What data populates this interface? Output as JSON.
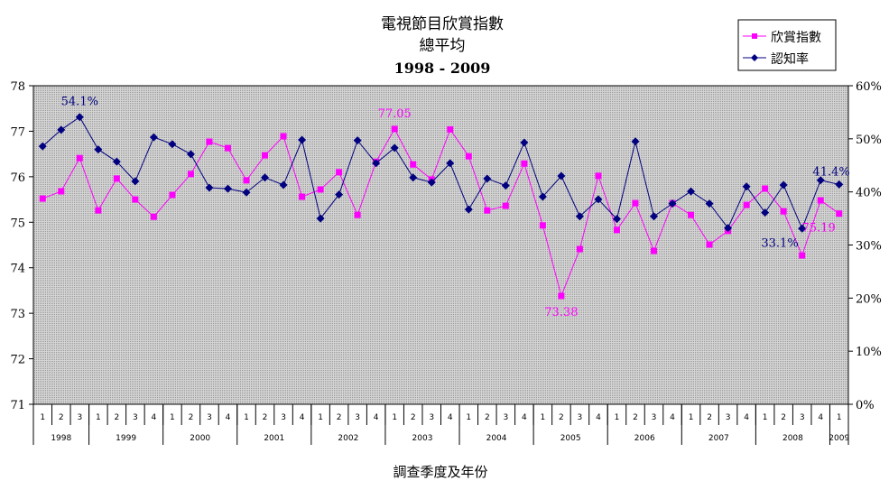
{
  "chart_data": {
    "type": "line",
    "title": "電視節目欣賞指數",
    "subtitle": "總平均",
    "period": "1998 - 2009",
    "xlabel": "調查季度及年份",
    "ylabel_left": "",
    "ylabel_right": "",
    "ylim_left": [
      71,
      78
    ],
    "ylim_right": [
      0,
      60
    ],
    "yticks_left": [
      "71",
      "72",
      "73",
      "74",
      "75",
      "76",
      "77",
      "78"
    ],
    "yticks_right": [
      "0%",
      "10%",
      "20%",
      "30%",
      "40%",
      "50%",
      "60%"
    ],
    "legend_placement": "top-right",
    "grid": false,
    "quarters": [
      "1",
      "2",
      "3",
      "1",
      "2",
      "3",
      "4",
      "1",
      "2",
      "3",
      "4",
      "1",
      "2",
      "3",
      "4",
      "1",
      "2",
      "3",
      "4",
      "1",
      "2",
      "3",
      "4",
      "1",
      "2",
      "3",
      "4",
      "1",
      "2",
      "3",
      "4",
      "1",
      "2",
      "3",
      "4",
      "1",
      "2",
      "3",
      "4",
      "1",
      "2",
      "3",
      "4",
      "1"
    ],
    "years": [
      {
        "label": "1998",
        "count": 3
      },
      {
        "label": "1999",
        "count": 4
      },
      {
        "label": "2000",
        "count": 4
      },
      {
        "label": "2001",
        "count": 4
      },
      {
        "label": "2002",
        "count": 4
      },
      {
        "label": "2003",
        "count": 4
      },
      {
        "label": "2004",
        "count": 4
      },
      {
        "label": "2005",
        "count": 4
      },
      {
        "label": "2006",
        "count": 4
      },
      {
        "label": "2007",
        "count": 4
      },
      {
        "label": "2008",
        "count": 4
      },
      {
        "label": "2009",
        "count": 1
      }
    ],
    "series": [
      {
        "name": "欣賞指數",
        "axis": "left",
        "color": "#FF00FF",
        "marker": "square",
        "values": [
          75.52,
          75.68,
          76.41,
          75.26,
          75.96,
          75.5,
          75.12,
          75.6,
          76.06,
          76.77,
          76.63,
          75.92,
          76.47,
          76.89,
          75.56,
          75.72,
          76.1,
          75.16,
          76.33,
          77.05,
          76.27,
          75.94,
          77.04,
          76.45,
          75.26,
          75.36,
          76.29,
          74.93,
          73.38,
          74.41,
          76.02,
          74.83,
          75.42,
          74.37,
          75.42,
          75.16,
          74.51,
          74.81,
          75.38,
          75.74,
          75.24,
          74.27,
          75.48,
          75.19
        ]
      },
      {
        "name": "認知率",
        "axis": "right",
        "color": "#000080",
        "marker": "diamond",
        "values": [
          48.6,
          51.7,
          54.1,
          48.0,
          45.7,
          42.0,
          50.3,
          49.0,
          47.1,
          40.8,
          40.6,
          39.9,
          42.7,
          41.3,
          49.8,
          35.0,
          39.5,
          49.7,
          45.4,
          48.3,
          42.7,
          41.8,
          45.4,
          36.7,
          42.5,
          41.2,
          49.3,
          39.1,
          43.0,
          35.4,
          38.6,
          34.9,
          49.5,
          35.4,
          37.8,
          40.1,
          37.8,
          33.2,
          41.0,
          36.1,
          41.3,
          33.1,
          42.2,
          41.4
        ]
      }
    ],
    "annotations": [
      {
        "series": 1,
        "index": 2,
        "text": "54.1%",
        "pos": "above"
      },
      {
        "series": 0,
        "index": 19,
        "text": "77.05",
        "pos": "above"
      },
      {
        "series": 0,
        "index": 28,
        "text": "73.38",
        "pos": "below"
      },
      {
        "series": 1,
        "index": 41,
        "text": "33.1%",
        "pos": "below-left"
      },
      {
        "series": 0,
        "index": 43,
        "text": "75.19",
        "pos": "below-left"
      },
      {
        "series": 1,
        "index": 43,
        "text": "41.4%",
        "pos": "above-left"
      }
    ]
  }
}
